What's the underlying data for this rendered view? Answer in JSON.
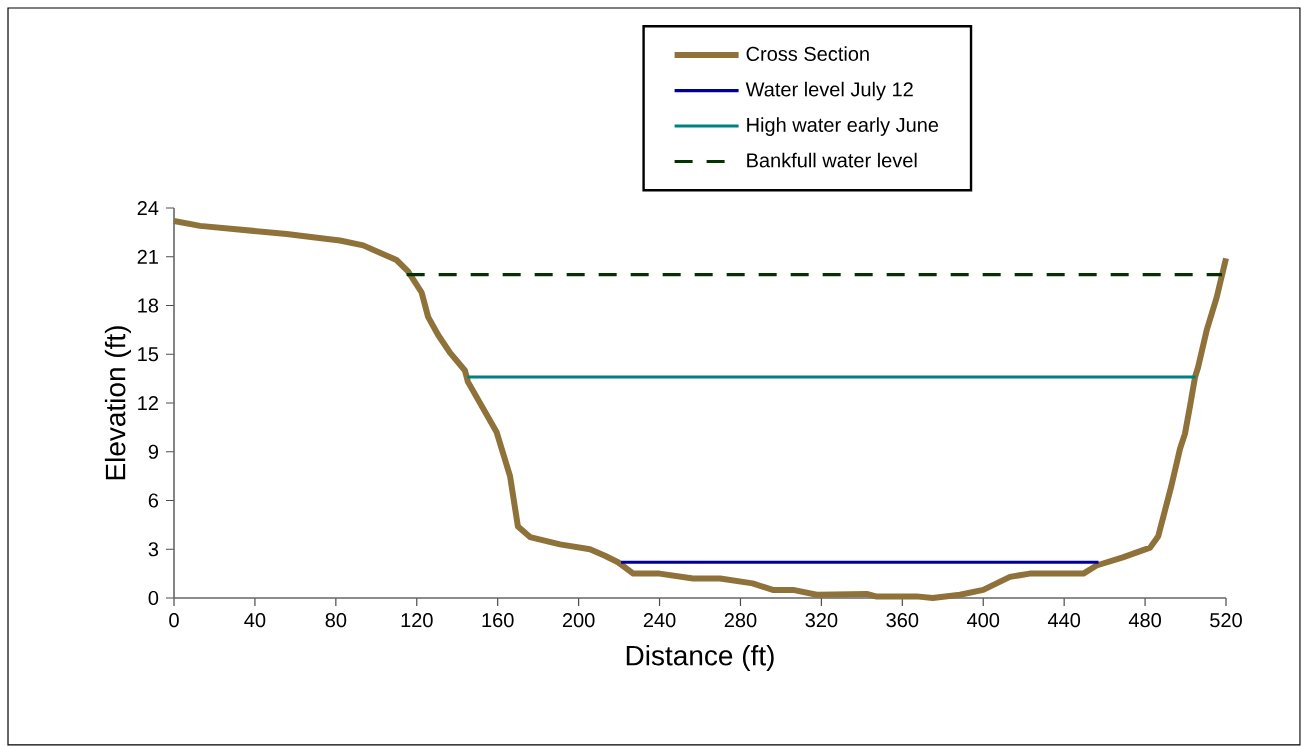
{
  "chart_data": {
    "type": "line",
    "xlabel": "Distance (ft)",
    "ylabel": "Elevation (ft)",
    "xlim": [
      0,
      520
    ],
    "ylim": [
      0,
      24
    ],
    "xticks": [
      0,
      40,
      80,
      120,
      160,
      200,
      240,
      280,
      320,
      360,
      400,
      440,
      480,
      520
    ],
    "yticks": [
      0,
      3,
      6,
      9,
      12,
      15,
      18,
      21,
      24
    ],
    "grid": false,
    "legend": "top",
    "series": [
      {
        "name": "Cross Section",
        "color": "#8f7239",
        "x": [
          0,
          12.9,
          55.7,
          68.7,
          82,
          93.5,
          110,
          115.7,
          122.4,
          125.6,
          130.5,
          136.4,
          143.8,
          145.3,
          159.5,
          166.1,
          170,
          176,
          190.8,
          205.6,
          213,
          219.5,
          227,
          240,
          256.6,
          270,
          286,
          296,
          306,
          317.7,
          342.4,
          347,
          367,
          375,
          388.5,
          400,
          413.2,
          423,
          449.5,
          456,
          469,
          482.5,
          486.5,
          493,
          497.3,
          499.7,
          502.2,
          504.7,
          506.2,
          510.5,
          515.4,
          520
        ],
        "values": [
          23.2,
          22.9,
          22.4,
          22.2,
          22.0,
          21.7,
          20.8,
          20.1,
          18.8,
          17.3,
          16.2,
          15.1,
          14.0,
          13.3,
          10.2,
          7.5,
          4.4,
          3.75,
          3.3,
          3.0,
          2.6,
          2.2,
          1.5,
          1.5,
          1.2,
          1.2,
          0.9,
          0.5,
          0.5,
          0.2,
          0.25,
          0.1,
          0.1,
          0,
          0.2,
          0.5,
          1.3,
          1.5,
          1.5,
          2.0,
          2.5,
          3.1,
          3.8,
          6.9,
          9.2,
          10.1,
          11.8,
          13.6,
          14.2,
          16.5,
          18.5,
          20.9
        ]
      },
      {
        "name": "Water level July 12",
        "color": "#000099",
        "x": [
          221,
          457
        ],
        "values": [
          2.2,
          2.2
        ]
      },
      {
        "name": "High water early June",
        "color": "#008080",
        "x": [
          145,
          505
        ],
        "values": [
          13.6,
          13.6
        ]
      },
      {
        "name": "Bankfull water level",
        "color": "#003300",
        "x": [
          115,
          518
        ],
        "values": [
          19.9,
          19.9
        ],
        "line_style": "dashed"
      }
    ]
  }
}
